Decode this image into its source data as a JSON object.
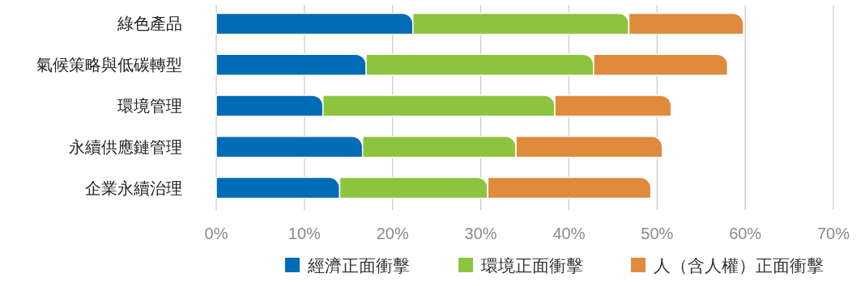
{
  "chart_data": {
    "type": "bar",
    "orientation": "horizontal",
    "stacked": true,
    "categories": [
      "綠色產品",
      "氣候策略與低碳轉型",
      "環境管理",
      "永續供應鏈管理",
      "企業永續治理"
    ],
    "series": [
      {
        "name": "經濟正面衝擊",
        "color": "#006bb6",
        "values": [
          22.3,
          17.0,
          12.1,
          16.6,
          14.0
        ]
      },
      {
        "name": "環境正面衝擊",
        "color": "#8dc43f",
        "values": [
          24.5,
          25.8,
          26.3,
          17.4,
          16.8
        ]
      },
      {
        "name": "人（含人權）正面衝擊",
        "color": "#e08a3c",
        "values": [
          13.0,
          15.2,
          13.2,
          16.6,
          18.5
        ]
      }
    ],
    "xlim": [
      0,
      70
    ],
    "xticks": [
      {
        "value": 0,
        "label": "0%"
      },
      {
        "value": 10,
        "label": "10%"
      },
      {
        "value": 20,
        "label": "20%"
      },
      {
        "value": 30,
        "label": "30%"
      },
      {
        "value": 40,
        "label": "40%"
      },
      {
        "value": 50,
        "label": "50%"
      },
      {
        "value": 60,
        "label": "60%"
      },
      {
        "value": 70,
        "label": "70%"
      }
    ],
    "grid": "x",
    "legend": "bottom"
  }
}
